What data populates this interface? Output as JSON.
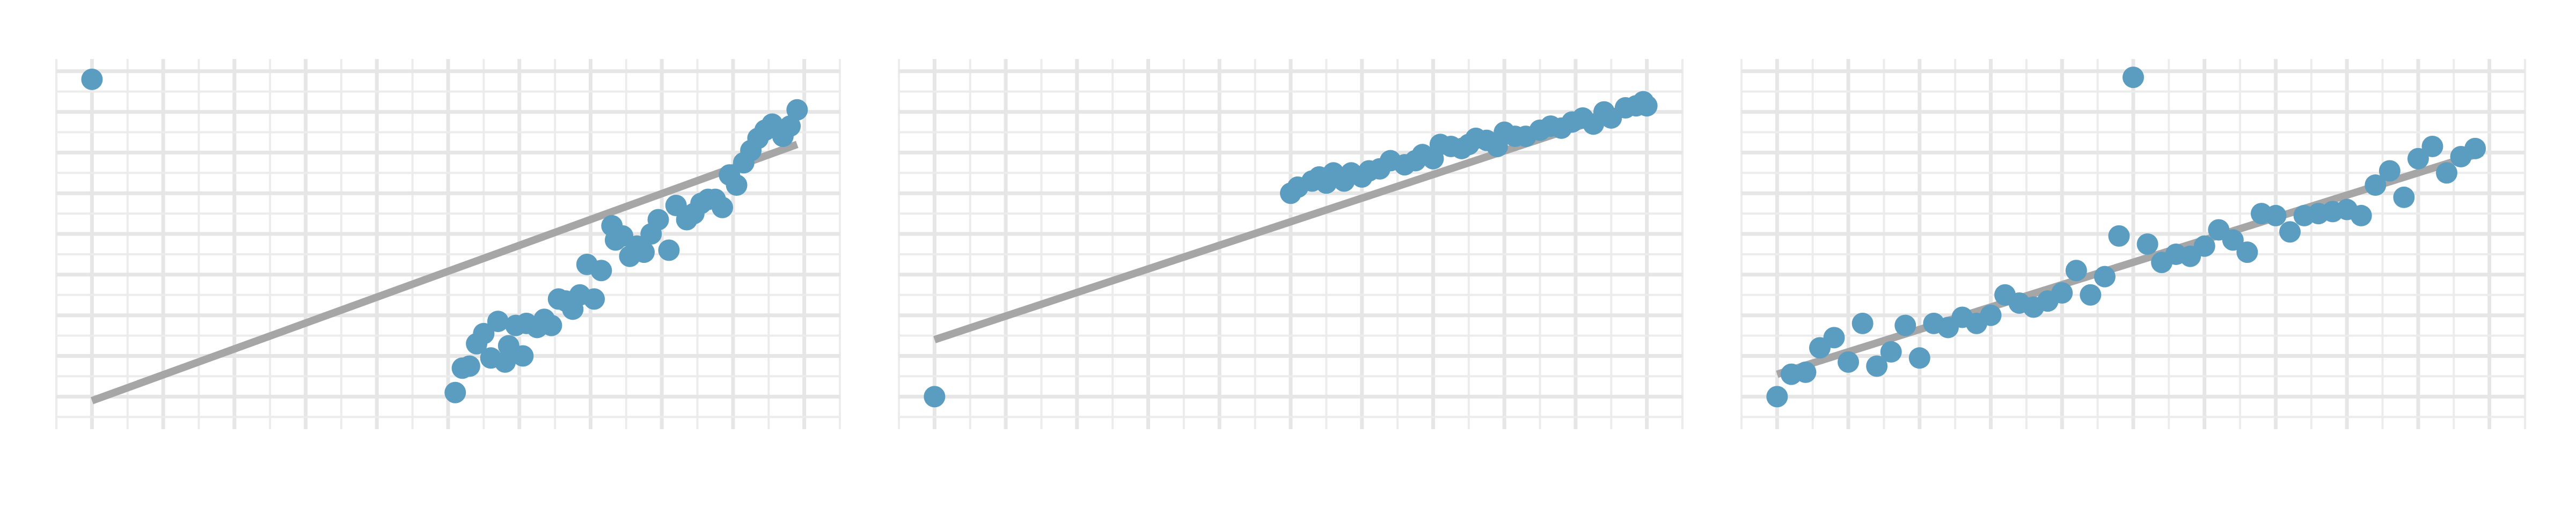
{
  "colors": {
    "background": "#ffffff",
    "grid_minor": "#ececec",
    "grid_major": "#e6e6e6",
    "point": "#5b9dc0",
    "fit_line": "#a6a6a6"
  },
  "chart_data": [
    {
      "type": "scatter",
      "title": "",
      "xlabel": "",
      "ylabel": "",
      "grid": true,
      "xlim": [
        -0.5,
        10.5
      ],
      "ylim": [
        -0.8,
        8.3
      ],
      "points": [
        {
          "x": 0.0,
          "y": 7.8
        },
        {
          "x": 5.1,
          "y": 0.1
        },
        {
          "x": 5.2,
          "y": 0.7
        },
        {
          "x": 5.3,
          "y": 0.75
        },
        {
          "x": 5.4,
          "y": 1.3
        },
        {
          "x": 5.5,
          "y": 1.55
        },
        {
          "x": 5.6,
          "y": 0.95
        },
        {
          "x": 5.7,
          "y": 1.85
        },
        {
          "x": 5.8,
          "y": 0.85
        },
        {
          "x": 5.85,
          "y": 1.25
        },
        {
          "x": 5.95,
          "y": 1.75
        },
        {
          "x": 6.05,
          "y": 1.0
        },
        {
          "x": 6.1,
          "y": 1.8
        },
        {
          "x": 6.25,
          "y": 1.7
        },
        {
          "x": 6.35,
          "y": 1.9
        },
        {
          "x": 6.45,
          "y": 1.75
        },
        {
          "x": 6.55,
          "y": 2.4
        },
        {
          "x": 6.65,
          "y": 2.35
        },
        {
          "x": 6.75,
          "y": 2.15
        },
        {
          "x": 6.85,
          "y": 2.5
        },
        {
          "x": 6.95,
          "y": 3.25
        },
        {
          "x": 7.05,
          "y": 2.4
        },
        {
          "x": 7.15,
          "y": 3.1
        },
        {
          "x": 7.3,
          "y": 4.2
        },
        {
          "x": 7.35,
          "y": 3.85
        },
        {
          "x": 7.45,
          "y": 3.95
        },
        {
          "x": 7.55,
          "y": 3.45
        },
        {
          "x": 7.65,
          "y": 3.7
        },
        {
          "x": 7.75,
          "y": 3.55
        },
        {
          "x": 7.85,
          "y": 4.0
        },
        {
          "x": 7.95,
          "y": 4.35
        },
        {
          "x": 8.1,
          "y": 3.6
        },
        {
          "x": 8.2,
          "y": 4.7
        },
        {
          "x": 8.35,
          "y": 4.35
        },
        {
          "x": 8.45,
          "y": 4.5
        },
        {
          "x": 8.55,
          "y": 4.75
        },
        {
          "x": 8.65,
          "y": 4.85
        },
        {
          "x": 8.75,
          "y": 4.85
        },
        {
          "x": 8.85,
          "y": 4.65
        },
        {
          "x": 8.95,
          "y": 5.45
        },
        {
          "x": 9.05,
          "y": 5.2
        },
        {
          "x": 9.15,
          "y": 5.75
        },
        {
          "x": 9.25,
          "y": 6.05
        },
        {
          "x": 9.35,
          "y": 6.35
        },
        {
          "x": 9.45,
          "y": 6.55
        },
        {
          "x": 9.55,
          "y": 6.7
        },
        {
          "x": 9.7,
          "y": 6.4
        },
        {
          "x": 9.8,
          "y": 6.65
        },
        {
          "x": 9.9,
          "y": 7.05
        }
      ],
      "fit_line": [
        [
          0.0,
          -0.1
        ],
        [
          9.9,
          6.2
        ]
      ]
    },
    {
      "type": "scatter",
      "title": "",
      "xlabel": "",
      "ylabel": "",
      "grid": true,
      "xlim": [
        -0.5,
        10.5
      ],
      "ylim": [
        -0.8,
        8.3
      ],
      "points": [
        {
          "x": 0.0,
          "y": 0.0
        },
        {
          "x": 5.0,
          "y": 5.0
        },
        {
          "x": 5.1,
          "y": 5.15
        },
        {
          "x": 5.3,
          "y": 5.3
        },
        {
          "x": 5.4,
          "y": 5.4
        },
        {
          "x": 5.5,
          "y": 5.25
        },
        {
          "x": 5.6,
          "y": 5.5
        },
        {
          "x": 5.75,
          "y": 5.3
        },
        {
          "x": 5.85,
          "y": 5.5
        },
        {
          "x": 6.0,
          "y": 5.4
        },
        {
          "x": 6.1,
          "y": 5.55
        },
        {
          "x": 6.25,
          "y": 5.6
        },
        {
          "x": 6.4,
          "y": 5.8
        },
        {
          "x": 6.6,
          "y": 5.7
        },
        {
          "x": 6.75,
          "y": 5.8
        },
        {
          "x": 6.85,
          "y": 5.95
        },
        {
          "x": 7.0,
          "y": 5.85
        },
        {
          "x": 7.1,
          "y": 6.2
        },
        {
          "x": 7.25,
          "y": 6.15
        },
        {
          "x": 7.4,
          "y": 6.1
        },
        {
          "x": 7.5,
          "y": 6.2
        },
        {
          "x": 7.6,
          "y": 6.35
        },
        {
          "x": 7.75,
          "y": 6.3
        },
        {
          "x": 7.9,
          "y": 6.15
        },
        {
          "x": 8.0,
          "y": 6.5
        },
        {
          "x": 8.15,
          "y": 6.4
        },
        {
          "x": 8.3,
          "y": 6.4
        },
        {
          "x": 8.5,
          "y": 6.55
        },
        {
          "x": 8.65,
          "y": 6.65
        },
        {
          "x": 8.8,
          "y": 6.6
        },
        {
          "x": 8.95,
          "y": 6.75
        },
        {
          "x": 9.1,
          "y": 6.85
        },
        {
          "x": 9.25,
          "y": 6.7
        },
        {
          "x": 9.4,
          "y": 7.0
        },
        {
          "x": 9.5,
          "y": 6.85
        },
        {
          "x": 9.7,
          "y": 7.1
        },
        {
          "x": 9.85,
          "y": 7.15
        },
        {
          "x": 9.95,
          "y": 7.25
        },
        {
          "x": 10.0,
          "y": 7.15
        }
      ],
      "fit_line": [
        [
          0.0,
          1.4
        ],
        [
          10.0,
          7.2
        ]
      ]
    },
    {
      "type": "scatter",
      "title": "",
      "xlabel": "",
      "ylabel": "",
      "grid": true,
      "xlim": [
        -0.5,
        10.5
      ],
      "ylim": [
        -0.8,
        8.3
      ],
      "points": [
        {
          "x": 0.0,
          "y": 0.0
        },
        {
          "x": 0.2,
          "y": 0.55
        },
        {
          "x": 0.4,
          "y": 0.6
        },
        {
          "x": 0.6,
          "y": 1.2
        },
        {
          "x": 0.8,
          "y": 1.45
        },
        {
          "x": 1.0,
          "y": 0.85
        },
        {
          "x": 1.2,
          "y": 1.8
        },
        {
          "x": 1.4,
          "y": 0.75
        },
        {
          "x": 1.6,
          "y": 1.1
        },
        {
          "x": 1.8,
          "y": 1.75
        },
        {
          "x": 2.0,
          "y": 0.95
        },
        {
          "x": 2.2,
          "y": 1.8
        },
        {
          "x": 2.4,
          "y": 1.7
        },
        {
          "x": 2.6,
          "y": 1.95
        },
        {
          "x": 2.8,
          "y": 1.8
        },
        {
          "x": 3.0,
          "y": 2.0
        },
        {
          "x": 3.2,
          "y": 2.5
        },
        {
          "x": 3.4,
          "y": 2.3
        },
        {
          "x": 3.6,
          "y": 2.2
        },
        {
          "x": 3.8,
          "y": 2.35
        },
        {
          "x": 4.0,
          "y": 2.55
        },
        {
          "x": 4.2,
          "y": 3.1
        },
        {
          "x": 4.4,
          "y": 2.5
        },
        {
          "x": 4.6,
          "y": 2.95
        },
        {
          "x": 4.8,
          "y": 3.95
        },
        {
          "x": 5.0,
          "y": 7.85
        },
        {
          "x": 5.2,
          "y": 3.75
        },
        {
          "x": 5.4,
          "y": 3.3
        },
        {
          "x": 5.6,
          "y": 3.5
        },
        {
          "x": 5.8,
          "y": 3.45
        },
        {
          "x": 6.0,
          "y": 3.7
        },
        {
          "x": 6.2,
          "y": 4.1
        },
        {
          "x": 6.4,
          "y": 3.85
        },
        {
          "x": 6.6,
          "y": 3.55
        },
        {
          "x": 6.8,
          "y": 4.5
        },
        {
          "x": 7.0,
          "y": 4.45
        },
        {
          "x": 7.2,
          "y": 4.05
        },
        {
          "x": 7.4,
          "y": 4.45
        },
        {
          "x": 7.6,
          "y": 4.5
        },
        {
          "x": 7.8,
          "y": 4.55
        },
        {
          "x": 8.0,
          "y": 4.6
        },
        {
          "x": 8.2,
          "y": 4.45
        },
        {
          "x": 8.4,
          "y": 5.2
        },
        {
          "x": 8.6,
          "y": 5.55
        },
        {
          "x": 8.8,
          "y": 4.9
        },
        {
          "x": 9.0,
          "y": 5.85
        },
        {
          "x": 9.2,
          "y": 6.15
        },
        {
          "x": 9.4,
          "y": 5.5
        },
        {
          "x": 9.6,
          "y": 5.9
        },
        {
          "x": 9.8,
          "y": 6.1
        }
      ],
      "fit_line": [
        [
          0.0,
          0.55
        ],
        [
          9.9,
          6.0
        ]
      ]
    }
  ]
}
